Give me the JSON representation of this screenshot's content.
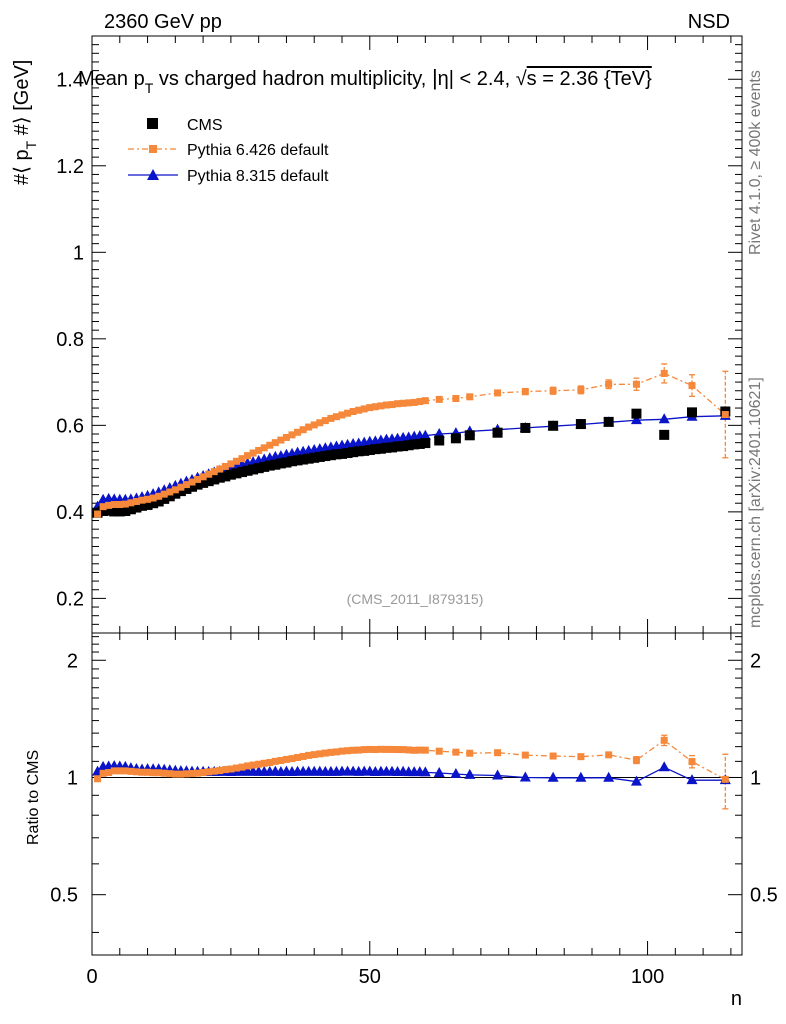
{
  "header": {
    "left_label": "2360 GeV pp",
    "right_label": "NSD"
  },
  "side_labels": {
    "rivet": "Rivet 4.1.0, ≥ 400k events",
    "mcplots": "mcplots.cern.ch [arXiv:2401.10621]"
  },
  "colors": {
    "cms": "#000000",
    "pythia6": "#f5883a",
    "pythia8": "#0a14c8",
    "watermark": "#999999"
  },
  "chart_data": [
    {
      "type": "scatter",
      "title": "Mean p_T vs charged hadron multiplicity, |η| < 2.4, √s = 2.36 {TeV}",
      "title_parts": {
        "a": "Mean p",
        "a_sub": "T",
        "b": " vs charged hadron multiplicity, ",
        "c": "η| < 2.4, ",
        "d": "√",
        "e": "s = 2.36 {TeV}"
      },
      "ylabel": "#⟨ p_T #⟩ [GeV]",
      "ylabel_parts": {
        "a": "#⟨ p",
        "sub": "T",
        "b": " #⟩ [GeV]"
      },
      "xlabel": "",
      "xlim": [
        0,
        117
      ],
      "ylim": [
        0.12,
        1.5
      ],
      "yticks": [
        0.2,
        0.4,
        0.6,
        0.8,
        1,
        1.2,
        1.4
      ],
      "ytick_labels": [
        "0.2",
        "0.4",
        "0.6",
        "0.8",
        "1",
        "1.2",
        "1.4"
      ],
      "watermark": "(CMS_2011_I879315)",
      "legend": [
        "CMS",
        "Pythia 6.426 default",
        "Pythia 8.315 default"
      ],
      "legend_position": "top-left",
      "series": [
        {
          "name": "CMS",
          "marker": "square",
          "x": [
            1,
            2,
            3,
            4,
            5,
            6,
            7,
            8,
            9,
            10,
            11,
            12,
            13,
            14,
            15,
            16,
            17,
            18,
            19,
            20,
            21,
            22,
            23,
            24,
            25,
            26,
            27,
            28,
            29,
            30,
            31,
            32,
            33,
            34,
            35,
            36,
            37,
            38,
            39,
            40,
            41,
            42,
            43,
            44,
            45,
            46,
            47,
            48,
            49,
            50,
            51,
            52,
            53,
            54,
            55,
            56,
            57,
            58,
            59,
            60,
            62.5,
            65.5,
            68,
            73,
            78,
            83,
            88,
            93,
            98,
            103,
            108,
            114
          ],
          "y": [
            0.398,
            0.402,
            0.403,
            0.401,
            0.401,
            0.402,
            0.406,
            0.41,
            0.414,
            0.416,
            0.42,
            0.424,
            0.43,
            0.436,
            0.442,
            0.448,
            0.453,
            0.458,
            0.463,
            0.467,
            0.471,
            0.475,
            0.479,
            0.482,
            0.486,
            0.489,
            0.492,
            0.495,
            0.498,
            0.501,
            0.504,
            0.507,
            0.509,
            0.512,
            0.514,
            0.517,
            0.519,
            0.521,
            0.523,
            0.525,
            0.527,
            0.529,
            0.531,
            0.533,
            0.534,
            0.536,
            0.538,
            0.54,
            0.541,
            0.543,
            0.545,
            0.546,
            0.548,
            0.549,
            0.551,
            0.552,
            0.554,
            0.556,
            0.557,
            0.559,
            0.565,
            0.57,
            0.577,
            0.583,
            0.594,
            0.599,
            0.603,
            0.608,
            0.627,
            0.578,
            0.63,
            0.632
          ]
        },
        {
          "name": "Pythia 6.426 default",
          "marker": "square-small",
          "x": [
            1,
            2,
            3,
            4,
            5,
            6,
            7,
            8,
            9,
            10,
            11,
            12,
            13,
            14,
            15,
            16,
            17,
            18,
            19,
            20,
            21,
            22,
            23,
            24,
            25,
            26,
            27,
            28,
            29,
            30,
            31,
            32,
            33,
            34,
            35,
            36,
            37,
            38,
            39,
            40,
            41,
            42,
            43,
            44,
            45,
            46,
            47,
            48,
            49,
            50,
            51,
            52,
            53,
            54,
            55,
            56,
            57,
            58,
            59,
            60,
            62.5,
            65.5,
            68,
            73,
            78,
            83,
            88,
            93,
            98,
            103,
            108,
            114
          ],
          "y": [
            0.395,
            0.412,
            0.415,
            0.417,
            0.417,
            0.418,
            0.421,
            0.424,
            0.427,
            0.429,
            0.432,
            0.436,
            0.441,
            0.446,
            0.451,
            0.457,
            0.463,
            0.469,
            0.475,
            0.481,
            0.487,
            0.493,
            0.499,
            0.505,
            0.511,
            0.517,
            0.523,
            0.53,
            0.536,
            0.542,
            0.548,
            0.554,
            0.56,
            0.566,
            0.572,
            0.578,
            0.584,
            0.59,
            0.596,
            0.601,
            0.606,
            0.611,
            0.616,
            0.62,
            0.624,
            0.628,
            0.632,
            0.635,
            0.638,
            0.641,
            0.643,
            0.645,
            0.647,
            0.648,
            0.65,
            0.651,
            0.652,
            0.653,
            0.655,
            0.657,
            0.66,
            0.662,
            0.666,
            0.675,
            0.678,
            0.68,
            0.682,
            0.695,
            0.695,
            0.72,
            0.692,
            0.625
          ],
          "err": [
            0,
            0,
            0,
            0,
            0,
            0,
            0,
            0,
            0,
            0,
            0,
            0,
            0,
            0,
            0,
            0,
            0,
            0,
            0,
            0,
            0,
            0,
            0,
            0,
            0,
            0,
            0,
            0,
            0,
            0,
            0,
            0,
            0,
            0,
            0,
            0,
            0,
            0,
            0,
            0,
            0,
            0,
            0,
            0,
            0,
            0,
            0,
            0,
            0,
            0,
            0,
            0,
            0,
            0,
            0,
            0,
            0,
            0,
            0,
            0,
            0.004,
            0.004,
            0.005,
            0.006,
            0.007,
            0.008,
            0.009,
            0.01,
            0.014,
            0.022,
            0.025,
            0.1
          ]
        },
        {
          "name": "Pythia 8.315 default",
          "marker": "triangle",
          "x": [
            1,
            2,
            3,
            4,
            5,
            6,
            7,
            8,
            9,
            10,
            11,
            12,
            13,
            14,
            15,
            16,
            17,
            18,
            19,
            20,
            21,
            22,
            23,
            24,
            25,
            26,
            27,
            28,
            29,
            30,
            31,
            32,
            33,
            34,
            35,
            36,
            37,
            38,
            39,
            40,
            41,
            42,
            43,
            44,
            45,
            46,
            47,
            48,
            49,
            50,
            51,
            52,
            53,
            54,
            55,
            56,
            57,
            58,
            59,
            60,
            62.5,
            65.5,
            68,
            73,
            78,
            83,
            88,
            93,
            98,
            103,
            108,
            114
          ],
          "y": [
            0.412,
            0.428,
            0.43,
            0.429,
            0.428,
            0.428,
            0.429,
            0.431,
            0.434,
            0.437,
            0.441,
            0.445,
            0.45,
            0.455,
            0.46,
            0.465,
            0.47,
            0.474,
            0.479,
            0.483,
            0.487,
            0.491,
            0.495,
            0.499,
            0.502,
            0.506,
            0.509,
            0.512,
            0.515,
            0.518,
            0.521,
            0.524,
            0.527,
            0.529,
            0.532,
            0.534,
            0.537,
            0.539,
            0.541,
            0.543,
            0.545,
            0.547,
            0.549,
            0.551,
            0.553,
            0.555,
            0.557,
            0.558,
            0.56,
            0.562,
            0.563,
            0.565,
            0.567,
            0.568,
            0.569,
            0.571,
            0.572,
            0.574,
            0.575,
            0.576,
            0.58,
            0.582,
            0.586,
            0.59,
            0.594,
            0.598,
            0.602,
            0.607,
            0.612,
            0.614,
            0.62,
            0.622
          ]
        }
      ]
    },
    {
      "type": "line",
      "ylabel": "Ratio to CMS",
      "xlabel": "n",
      "xlim": [
        0,
        117
      ],
      "ylim": [
        0.35,
        2.35
      ],
      "yticks": [
        0.5,
        1,
        2
      ],
      "ytick_labels": [
        "0.5",
        "1",
        "2"
      ],
      "xticks": [
        0,
        50,
        100
      ],
      "xtick_labels": [
        "0",
        "50",
        "100"
      ],
      "reference_line": 1,
      "series_names": [
        "Pythia 6.426 default",
        "Pythia 8.315 default"
      ]
    }
  ]
}
